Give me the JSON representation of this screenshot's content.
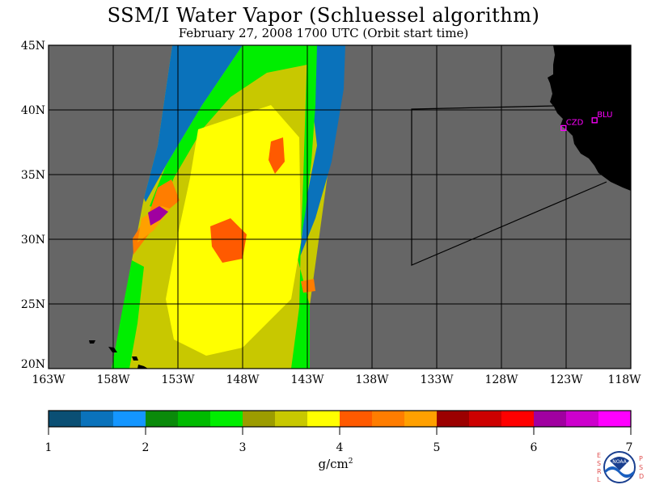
{
  "title": "SSM/I Water Vapor (Schluessel algorithm)",
  "subtitle": "February 27, 2008  1700 UTC  (Orbit start time)",
  "lat_labels": [
    "45N",
    "40N",
    "35N",
    "30N",
    "25N",
    "20N"
  ],
  "lon_labels": [
    "163W",
    "158W",
    "153W",
    "148W",
    "143W",
    "138W",
    "133W",
    "128W",
    "123W",
    "118W"
  ],
  "stations": [
    {
      "code": "CZD",
      "lat": 38.6,
      "lon": -123.2
    },
    {
      "code": "BLU",
      "lat": 39.2,
      "lon": -120.8
    }
  ],
  "colorbar": {
    "labels": [
      "1",
      "2",
      "3",
      "4",
      "5",
      "6",
      "7"
    ],
    "units": "g/cm",
    "units_sup": "2",
    "colors": [
      "#0a4f74",
      "#0a72bb",
      "#1496ff",
      "#0a8a0a",
      "#00bb00",
      "#00ee00",
      "#9c9c00",
      "#c8c800",
      "#ffff00",
      "#ff5a00",
      "#ff7d00",
      "#ffa000",
      "#9b0000",
      "#cd0000",
      "#ff0000",
      "#a000a0",
      "#cd00cd",
      "#ff00ff"
    ]
  },
  "logo": {
    "left_letters": [
      "E",
      "S",
      "R",
      "L"
    ],
    "right_letters": [
      "P",
      "S",
      "D"
    ],
    "text": "NOAA"
  },
  "colors": {
    "land": "#000000",
    "nodata": "#666666",
    "grid": "#000000",
    "station": "#ff00ff"
  }
}
